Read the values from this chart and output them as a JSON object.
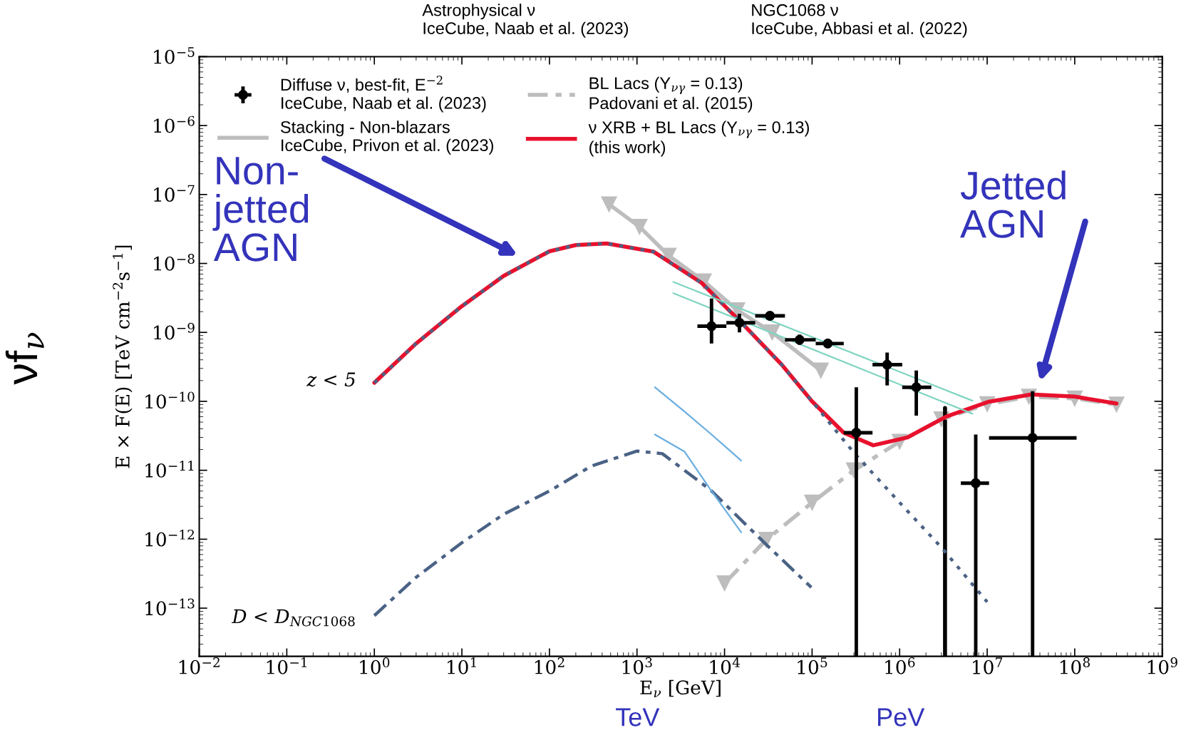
{
  "chart_data": {
    "type": "line",
    "xlabel": "E$_{ν}$ [GeV]",
    "ylabel": "E × F(E) [TeV cm$^{−2}$s$^{−1}$]",
    "log": "xy",
    "xlim": [
      0.01,
      1000000000.0
    ],
    "ylim": [
      2e-14,
      1e-05
    ],
    "xticks": [
      {
        "value": 0.01,
        "label": "10$^{−2}$"
      },
      {
        "value": 0.1,
        "label": "10$^{−1}$"
      },
      {
        "value": 1,
        "label": "10$^{0}$"
      },
      {
        "value": 10,
        "label": "10$^{1}$"
      },
      {
        "value": 100,
        "label": "10$^{2}$"
      },
      {
        "value": 1000,
        "label": "10$^{3}$"
      },
      {
        "value": 10000,
        "label": "10$^{4}$"
      },
      {
        "value": 100000,
        "label": "10$^{5}$"
      },
      {
        "value": 1000000,
        "label": "10$^{6}$"
      },
      {
        "value": 10000000,
        "label": "10$^{7}$"
      },
      {
        "value": 100000000,
        "label": "10$^{8}$"
      },
      {
        "value": 1000000000,
        "label": "10$^{9}$"
      }
    ],
    "yticks": [
      {
        "value": 1e-13,
        "label": "10$^{−13}$"
      },
      {
        "value": 1e-12,
        "label": "10$^{−12}$"
      },
      {
        "value": 1e-11,
        "label": "10$^{−11}$"
      },
      {
        "value": 1e-10,
        "label": "10$^{−10}$"
      },
      {
        "value": 1e-09,
        "label": "10$^{−9}$"
      },
      {
        "value": 1e-08,
        "label": "10$^{−8}$"
      },
      {
        "value": 1e-07,
        "label": "10$^{−7}$"
      },
      {
        "value": 1e-06,
        "label": "10$^{−6}$"
      },
      {
        "value": 1e-05,
        "label": "10$^{−5}$"
      }
    ],
    "grid": false,
    "legend": "top left",
    "series": [
      {
        "type": "scatter",
        "name": "Diffuse ν, best-fit, E$^{−2}$\nIceCube, Naab et al. (2023)",
        "color": "#000000",
        "marker": "circle",
        "x": [
          7100.0,
          14800.0,
          33000.0,
          72000.0,
          151000.0,
          320000.0,
          720000.0,
          1550000.0,
          7400000.0,
          33000000.0
        ],
        "values": [
          1.23e-09,
          1.38e-09,
          1.74e-09,
          7.8e-10,
          6.9e-10,
          3.5e-11,
          3.4e-10,
          1.6e-10,
          6.5e-12,
          2.95e-11
        ],
        "errors": [
          [
            6.9e-10,
            3.1e-09
          ],
          [
            1e-09,
            1.86e-09
          ],
          null,
          [
            6.6e-10,
            9.3e-10
          ],
          [
            5.9e-10,
            8.1e-10
          ],
          [
            2e-14,
            1.6e-10
          ],
          [
            1.7e-10,
            5.1e-10
          ],
          [
            6.2e-11,
            2.8e-10
          ],
          [
            2e-14,
            3.3e-11
          ],
          [
            2e-14,
            1.4e-10
          ]
        ],
        "xerrors": [
          [
            4900.0,
            10500.0
          ],
          [
            10500.0,
            22400.0
          ],
          [
            22400.0,
            49000.0
          ],
          [
            49000.0,
            110000.0
          ],
          [
            110000.0,
            230000.0
          ],
          [
            230000.0,
            490000.0
          ],
          [
            490000.0,
            1070000.0
          ],
          [
            1070000.0,
            2300000.0
          ],
          [
            5000000.0,
            10500000.0
          ],
          [
            10500000.0,
            105000000.0
          ]
        ]
      },
      {
        "color": "#000000",
        "x": [
          3300000.0,
          3300000.0
        ],
        "values": [
          2e-14,
          8e-11
        ]
      },
      {
        "name": "Stacking - Non-blazars\nIceCube, Privon et al. (2023)",
        "color": "#bdbdbd",
        "marker": "triangle",
        "x": [
          480.0,
          1070.0,
          2300.0,
          5800.0,
          14000.0,
          35000.0,
          126000.0
        ],
        "values": [
          7.2e-08,
          3.4e-08,
          1.3e-08,
          5.5e-09,
          2.1e-09,
          1e-09,
          2.8e-10
        ]
      },
      {
        "name": "BL Lacs (Y$_{νγ}$ = 0.13)\nPadovani et al. (2015)",
        "color": "#bdbdbd",
        "marker": "triangle",
        "line_style": "dashdot",
        "x": [
          10000.0,
          30000.0,
          100000.0,
          300000.0,
          1000000.0,
          3000000.0,
          10000000.0,
          30000000.0,
          100000000.0,
          300000000.0
        ],
        "values": [
          2.3e-13,
          9.8e-13,
          3.4e-12,
          1e-11,
          2.6e-11,
          5.5e-11,
          9.1e-11,
          1.17e-10,
          1.1e-10,
          9e-11
        ]
      },
      {
        "name": "ν XRB + BL Lacs (Y$_{νγ}$ = 0.13)\n(this work)",
        "color": "#e8112d",
        "x": [
          1,
          3,
          10,
          30,
          100,
          200,
          450,
          1550,
          5500,
          16200.0,
          45000.0,
          100000.0,
          230000.0,
          500000.0,
          1230000.0,
          3400000.0,
          10200000.0,
          32000000.0,
          100000000.0,
          300000000.0
        ],
        "values": [
          1.86e-10,
          6.9e-10,
          2.4e-09,
          6.6e-09,
          1.5e-08,
          1.85e-08,
          1.95e-08,
          1.48e-08,
          5.2e-09,
          1.32e-09,
          3.4e-10,
          1e-10,
          3.5e-11,
          2.3e-11,
          3e-11,
          6e-11,
          9.8e-11,
          1.26e-10,
          1.17e-10,
          9.3e-11
        ]
      },
      {
        "color": "#4a6285",
        "line_style": "dotted",
        "x": [
          1,
          3,
          10,
          30,
          100,
          200,
          450,
          1550,
          5500,
          16200.0,
          45000.0,
          100000.0,
          300000.0,
          1000000.0,
          3000000.0,
          10000000.0
        ],
        "values": [
          1.86e-10,
          6.9e-10,
          2.4e-09,
          6.6e-09,
          1.5e-08,
          1.85e-08,
          1.95e-08,
          1.48e-08,
          5.2e-09,
          1.32e-09,
          3.4e-10,
          1e-10,
          1.8e-11,
          3.4e-12,
          7.6e-13,
          1.23e-13
        ]
      },
      {
        "color": "#4a6285",
        "line_style": "dashdot",
        "x": [
          1,
          3,
          10,
          30,
          100,
          300,
          1000,
          1950.0,
          6900.0,
          29000.0,
          98000.0
        ],
        "values": [
          7.8e-14,
          2.8e-13,
          8.9e-13,
          2.3e-12,
          5e-12,
          1.15e-11,
          1.9e-11,
          1.74e-11,
          5.2e-12,
          8.7e-13,
          2e-13
        ]
      },
      {
        "color": "#80d4c2",
        "x": [
          2600.0,
          6800000.0
        ],
        "values": [
          5.4e-09,
          1.02e-10
        ]
      },
      {
        "color": "#80d4c2",
        "x": [
          2600.0,
          6800000.0
        ],
        "values": [
          3.7e-09,
          6.6e-11
        ]
      },
      {
        "color": "#6aaee0",
        "x": [
          1600.0,
          3500.0,
          7100.0,
          15500.0
        ],
        "values": [
          1.6e-10,
          7.1e-11,
          3.3e-11,
          1.38e-11
        ]
      },
      {
        "color": "#6aaee0",
        "x": [
          1600.0,
          3500.0,
          7100.0,
          15500.0
        ],
        "values": [
          3.3e-11,
          1.86e-11,
          5e-12,
          1.26e-12
        ]
      }
    ],
    "annotations": [
      "Astrophysical ν\nIceCube, Naab et al. (2023)",
      "NGC1068 ν\nIceCube, Abbasi et al. (2022)",
      "Non-\njetted\nAGN",
      "Jetted\nAGN",
      "z < 5",
      "D < D$_{NGC1068}$",
      "TeV",
      "PeV",
      "νf$_{ν}$"
    ]
  }
}
